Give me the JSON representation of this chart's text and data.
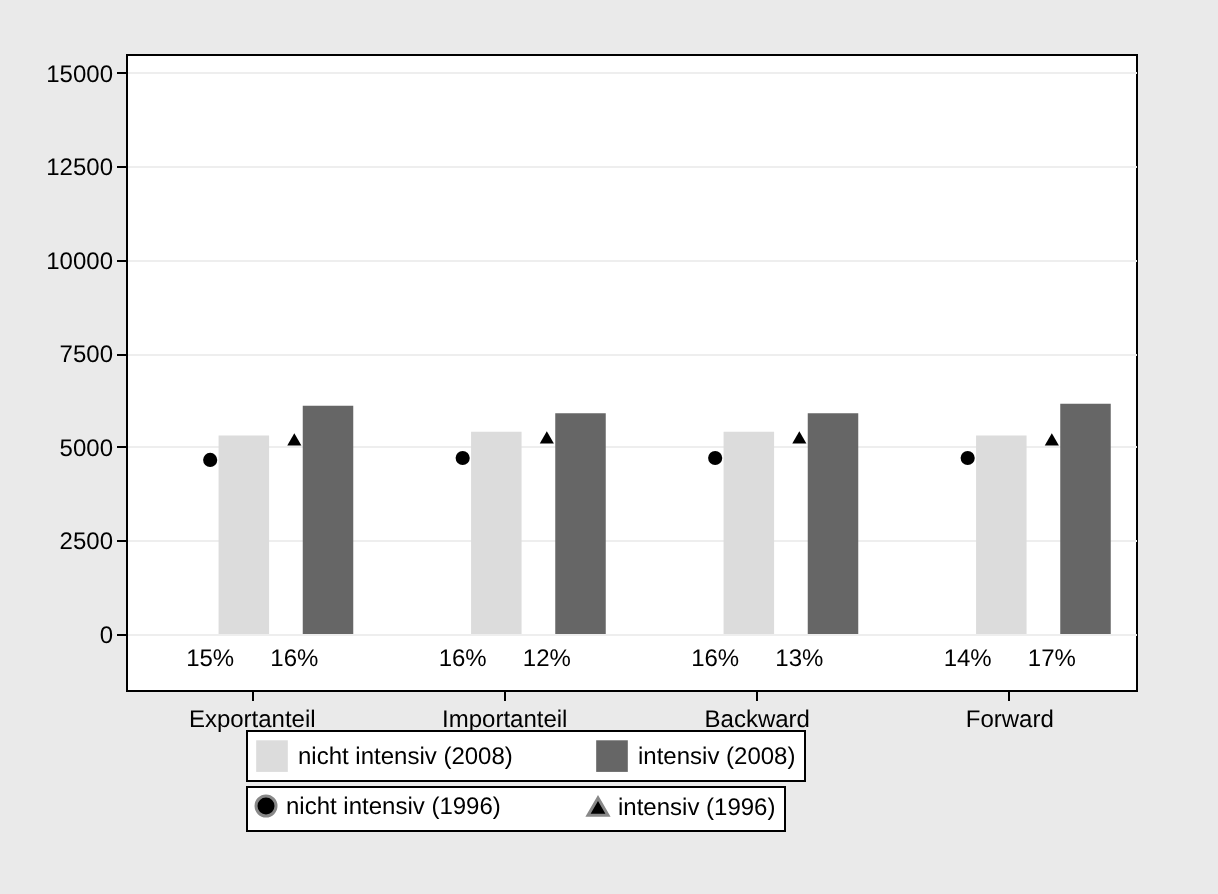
{
  "chart_data": {
    "type": "bar",
    "categories": [
      "Exportanteil",
      "Importanteil",
      "Backward",
      "Forward"
    ],
    "series": [
      {
        "name": "nicht intensiv (2008)",
        "color": "#dcdcdc",
        "values": [
          5300,
          5400,
          5400,
          5300
        ]
      },
      {
        "name": "intensiv (2008)",
        "color": "#666666",
        "values": [
          6100,
          5900,
          5900,
          6150
        ]
      },
      {
        "name": "nicht intensiv (1996)",
        "type": "scatter",
        "marker": "circle",
        "color": "#000000",
        "values": [
          4650,
          4700,
          4700,
          4700
        ]
      },
      {
        "name": "intensiv (1996)",
        "type": "scatter",
        "marker": "triangle",
        "color": "#000000",
        "values": [
          5200,
          5250,
          5250,
          5200
        ]
      }
    ],
    "annotations": [
      "15%",
      "16%",
      "16%",
      "12%",
      "16%",
      "13%",
      "14%",
      "17%"
    ],
    "ylim": [
      -1500,
      15500
    ],
    "yticks": [
      0,
      2500,
      5000,
      7500,
      10000,
      12500,
      15000
    ],
    "grid": "y",
    "legend": "bottom"
  }
}
